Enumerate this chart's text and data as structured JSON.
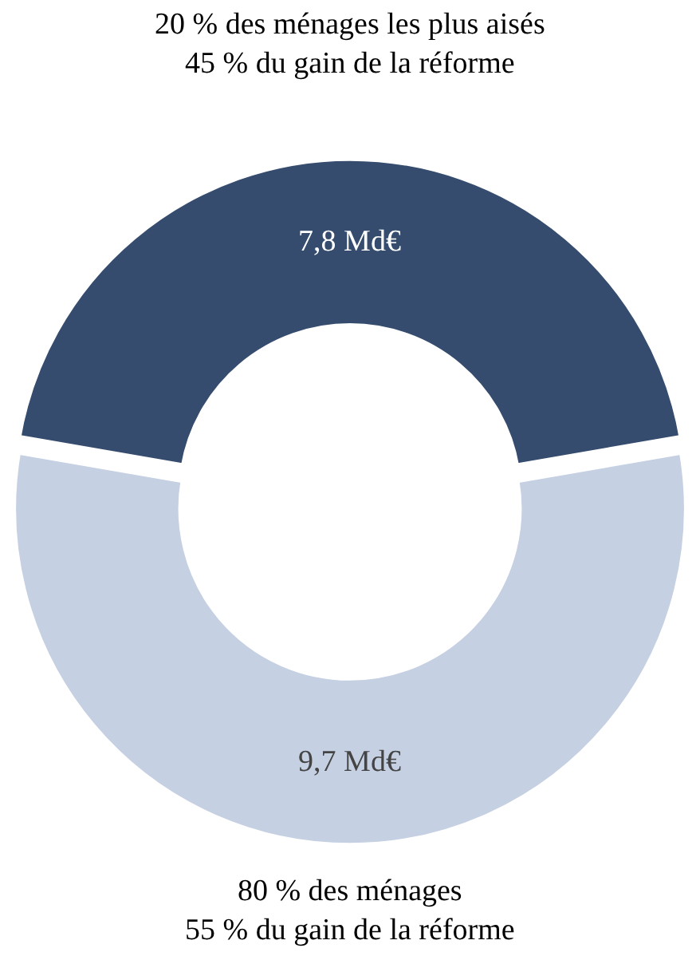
{
  "chart_data": {
    "type": "donut",
    "categories": [
      "20 % des ménages les plus aisés\n45 % du gain de la réforme",
      "80 % des ménages\n55 % du gain de la réforme"
    ],
    "values": [
      7.8,
      9.7
    ],
    "value_labels": [
      "7,8 Md€",
      "9,7 Md€"
    ],
    "colors": [
      "#354c6e",
      "#c5d0e2"
    ],
    "legend": false
  }
}
